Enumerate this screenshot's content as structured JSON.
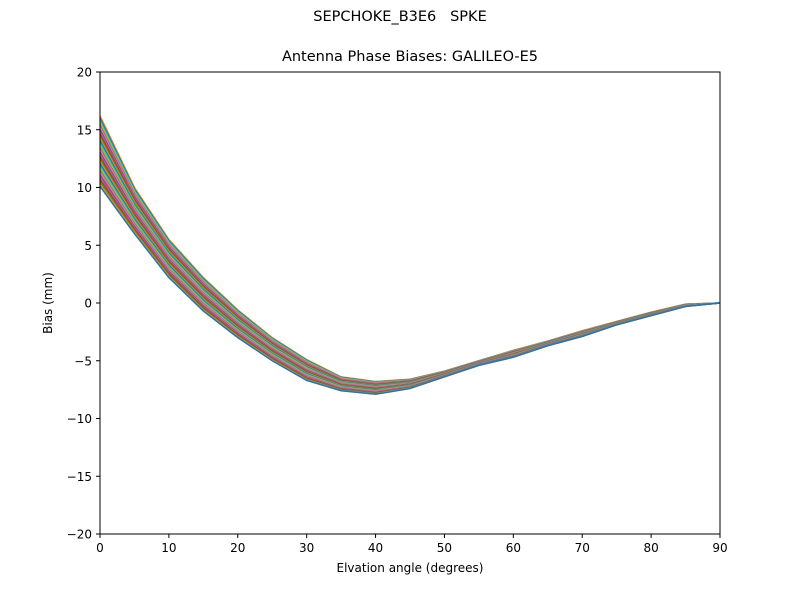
{
  "figure": {
    "suptitle": "SEPCHOKE_B3E6   SPKE",
    "title": "Antenna Phase Biases: GALILEO-E5",
    "xlabel": "Elvation angle (degrees)",
    "ylabel": "Bias (mm)"
  },
  "chart_data": {
    "type": "line",
    "title": "Antenna Phase Biases: GALILEO-E5",
    "suptitle": "SEPCHOKE_B3E6   SPKE",
    "xlabel": "Elvation angle (degrees)",
    "ylabel": "Bias (mm)",
    "xlim": [
      0,
      90
    ],
    "ylim": [
      -20,
      20
    ],
    "xticks": [
      0,
      10,
      20,
      30,
      40,
      50,
      60,
      70,
      80,
      90
    ],
    "yticks": [
      -20,
      -15,
      -10,
      -5,
      0,
      5,
      10,
      15,
      20
    ],
    "ytick_labels": [
      "−20",
      "−15",
      "−10",
      "−5",
      "0",
      "5",
      "10",
      "15",
      "20"
    ],
    "grid": false,
    "legend": null,
    "x": [
      0,
      5,
      10,
      15,
      20,
      25,
      30,
      35,
      40,
      45,
      50,
      55,
      60,
      65,
      70,
      75,
      80,
      85,
      90
    ],
    "series_count": 32,
    "series_envelope": {
      "upper": [
        16.2,
        10.0,
        5.5,
        2.2,
        -0.6,
        -3.0,
        -4.9,
        -6.4,
        -6.8,
        -6.6,
        -5.9,
        -5.0,
        -4.1,
        -3.3,
        -2.4,
        -1.6,
        -0.8,
        -0.1,
        0.0
      ],
      "lower": [
        10.1,
        6.0,
        2.2,
        -0.7,
        -3.0,
        -5.0,
        -6.7,
        -7.6,
        -7.9,
        -7.4,
        -6.4,
        -5.4,
        -4.7,
        -3.7,
        -2.9,
        -1.9,
        -1.1,
        -0.3,
        0.0
      ]
    },
    "colors": [
      "#1f77b4",
      "#ff7f0e",
      "#2ca02c",
      "#d62728",
      "#9467bd",
      "#8c564b",
      "#e377c2",
      "#7f7f7f",
      "#bcbd22",
      "#17becf"
    ],
    "note": "Many overlapping per-azimuth curves forming a band between the upper and lower envelopes; spread narrows toward 90 degrees where all converge to 0."
  }
}
